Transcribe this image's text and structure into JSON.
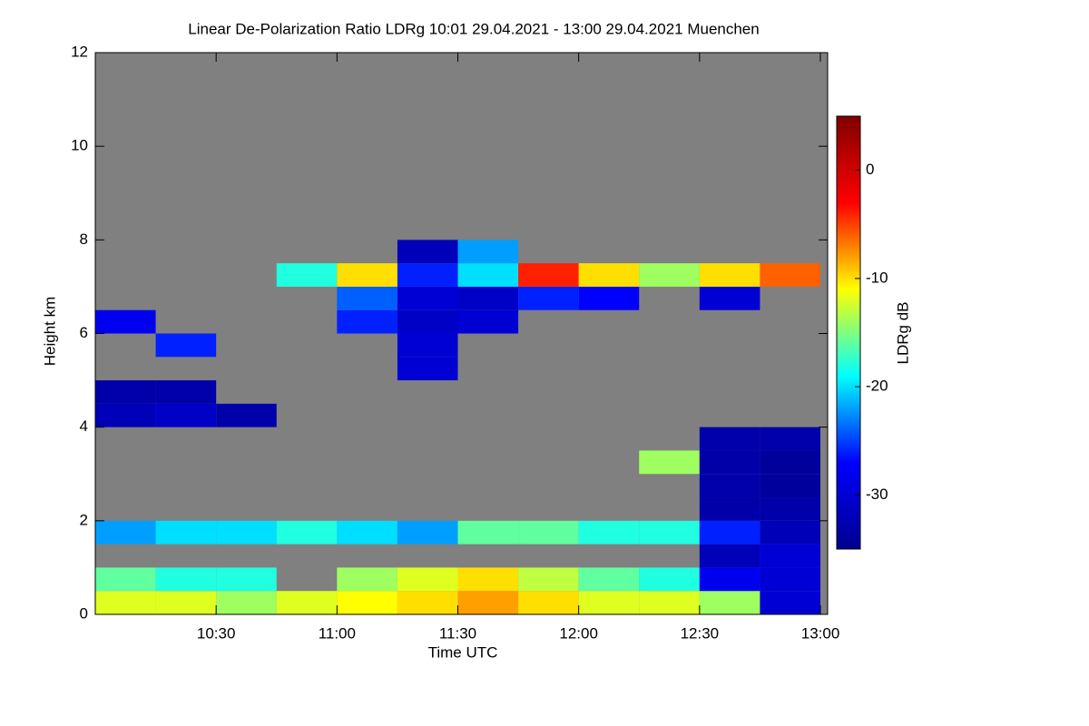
{
  "chart_data": {
    "type": "heatmap",
    "title": "Linear De-Polarization Ratio LDRg   10:01 29.04.2021 - 13:00 29.04.2021 Muenchen",
    "x_label": "Time UTC",
    "y_label": "Height km",
    "colorbar_label": "LDRg dB",
    "xlim": [
      10.0,
      13.03
    ],
    "xticks": [
      {
        "value": 10.5,
        "label": "10:30"
      },
      {
        "value": 11,
        "label": "11:00"
      },
      {
        "value": 11.5,
        "label": "11:30"
      },
      {
        "value": 12,
        "label": "12:00"
      },
      {
        "value": 12.5,
        "label": "12:30"
      },
      {
        "value": 13,
        "label": "13:00"
      }
    ],
    "ylim": [
      0,
      12
    ],
    "yticks": [
      0,
      2,
      4,
      6,
      8,
      10,
      12
    ],
    "clim": [
      -35,
      5
    ],
    "cticks": [
      0,
      -10,
      -20,
      -30
    ],
    "colormap": [
      "#00008f",
      "#0000ff",
      "#00ffff",
      "#ffff00",
      "#ff0000",
      "#800000"
    ],
    "background": "#808080",
    "xbins": [
      10.0,
      10.25,
      10.5,
      10.75,
      11.0,
      11.25,
      11.5,
      11.75,
      12.0,
      12.25,
      12.5,
      12.75,
      13.0
    ],
    "ybins": [
      0,
      0.5,
      1,
      1.5,
      2,
      2.5,
      3,
      3.5,
      4,
      4.5,
      5,
      5.5,
      6,
      6.5,
      7,
      7.5,
      8
    ],
    "z": [
      [
        -12,
        -12,
        -14,
        -12,
        -11,
        -10,
        -8,
        -10,
        -12,
        -12,
        -14,
        -30
      ],
      [
        -16,
        -18,
        -18,
        null,
        -14,
        -12,
        -10,
        -13,
        -16,
        -18,
        -28,
        -30
      ],
      [
        null,
        null,
        null,
        null,
        null,
        null,
        null,
        null,
        null,
        null,
        -32,
        -30
      ],
      [
        -22,
        -20,
        -20,
        -18,
        -20,
        -22,
        -16,
        -16,
        -18,
        -18,
        -26,
        -32
      ],
      [
        null,
        null,
        null,
        null,
        null,
        null,
        null,
        null,
        null,
        null,
        -33,
        -33
      ],
      [
        null,
        null,
        null,
        null,
        null,
        null,
        null,
        null,
        null,
        null,
        -33,
        -34
      ],
      [
        null,
        null,
        null,
        null,
        null,
        null,
        null,
        null,
        null,
        -14,
        -33,
        -34
      ],
      [
        null,
        null,
        null,
        null,
        null,
        null,
        null,
        null,
        null,
        null,
        -33,
        -33
      ],
      [
        -32,
        -31,
        -33,
        null,
        null,
        null,
        null,
        null,
        null,
        null,
        null,
        null
      ],
      [
        -33,
        -33,
        null,
        null,
        null,
        null,
        null,
        null,
        null,
        null,
        null,
        null
      ],
      [
        null,
        null,
        null,
        null,
        null,
        -30,
        null,
        null,
        null,
        null,
        null,
        null
      ],
      [
        null,
        -26,
        null,
        null,
        null,
        -30,
        null,
        null,
        null,
        null,
        null,
        null
      ],
      [
        -28,
        null,
        null,
        null,
        -26,
        -31,
        -30,
        null,
        null,
        null,
        null,
        null
      ],
      [
        null,
        null,
        null,
        null,
        -24,
        -30,
        -31,
        -26,
        -27,
        null,
        -30,
        null
      ],
      [
        null,
        null,
        null,
        -18,
        -10,
        -26,
        -20,
        -4,
        -10,
        -14,
        -10,
        -6
      ],
      [
        null,
        null,
        null,
        null,
        null,
        -32,
        -22,
        null,
        null,
        null,
        null,
        null
      ]
    ]
  }
}
